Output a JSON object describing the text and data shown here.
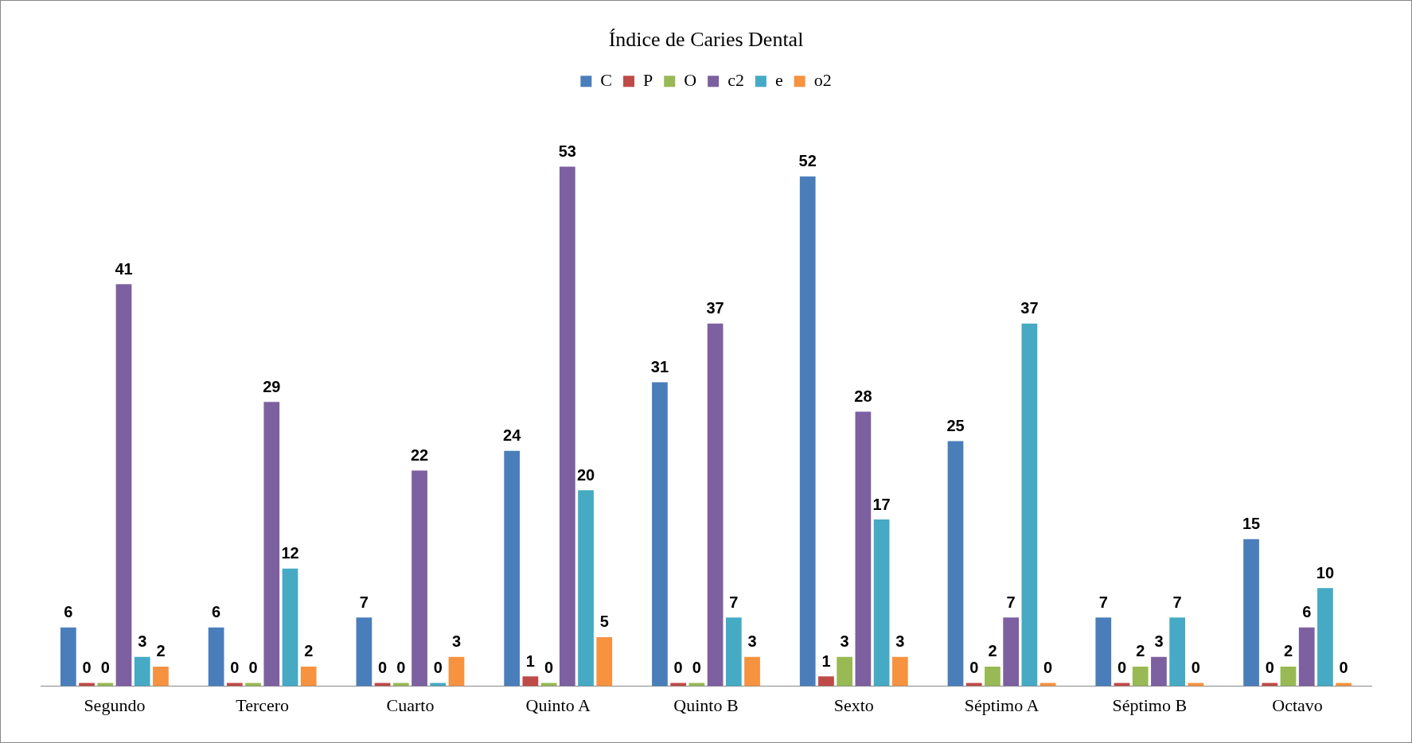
{
  "chart_data": {
    "type": "bar",
    "title": "Índice de Caries Dental",
    "categories": [
      "Segundo",
      "Tercero",
      "Cuarto",
      "Quinto A",
      "Quinto B",
      "Sexto",
      "Séptimo A",
      "Séptimo B",
      "Octavo"
    ],
    "series": [
      {
        "name": "C",
        "color": "#4a7ebb",
        "values": [
          6,
          6,
          7,
          24,
          31,
          52,
          25,
          7,
          15
        ]
      },
      {
        "name": "P",
        "color": "#be4b48",
        "values": [
          0,
          0,
          0,
          1,
          0,
          1,
          0,
          0,
          0
        ]
      },
      {
        "name": "O",
        "color": "#98b954",
        "values": [
          0,
          0,
          0,
          0,
          0,
          3,
          2,
          2,
          2
        ]
      },
      {
        "name": "c2",
        "color": "#7d60a0",
        "values": [
          41,
          29,
          22,
          53,
          37,
          28,
          7,
          3,
          6
        ]
      },
      {
        "name": "e",
        "color": "#46aac5",
        "values": [
          3,
          12,
          0,
          20,
          7,
          17,
          37,
          7,
          10
        ]
      },
      {
        "name": "o2",
        "color": "#f69240",
        "values": [
          2,
          2,
          3,
          5,
          3,
          3,
          0,
          0,
          0
        ]
      }
    ],
    "data_labels": true,
    "legend": "top",
    "grid": false
  }
}
